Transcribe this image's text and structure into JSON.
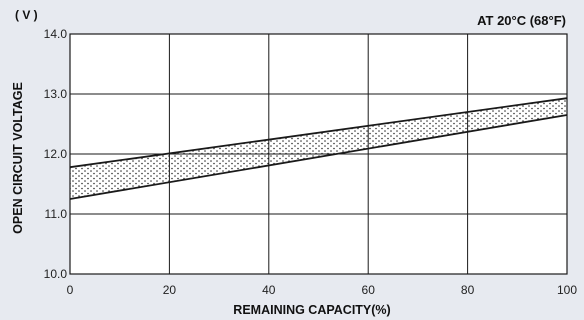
{
  "chart_data": {
    "type": "area",
    "title": "",
    "annotation": "AT 20°C (68°F)",
    "unit_label": "( V )",
    "xlabel": "REMAINING CAPACITY(%)",
    "ylabel": "OPEN CIRCUIT VOLTAGE",
    "xlim": [
      0,
      100
    ],
    "ylim": [
      10.0,
      14.0
    ],
    "x_ticks": [
      "0",
      "20",
      "40",
      "60",
      "80",
      "100"
    ],
    "y_ticks": [
      "10.0",
      "11.0",
      "12.0",
      "13.0",
      "14.0"
    ],
    "grid": true,
    "band": {
      "fill": "stippled",
      "upper": {
        "x": [
          0,
          100
        ],
        "y": [
          11.78,
          12.93
        ]
      },
      "lower": {
        "x": [
          0,
          100
        ],
        "y": [
          11.25,
          12.65
        ]
      }
    },
    "colors": {
      "background": "#e7eaf0",
      "plot_area": "#ffffff",
      "lines": "#1a1a1a"
    }
  }
}
